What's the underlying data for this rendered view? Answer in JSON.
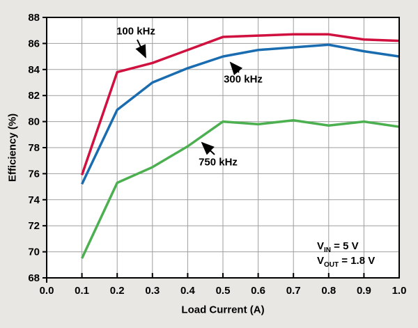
{
  "figure": {
    "background": "#e8e7e3",
    "plot_background": "#ffffff",
    "frame_color": "#000000",
    "grid_color": "#9e9e9e",
    "text_color": "#000000"
  },
  "chart_data": {
    "type": "line",
    "title": "",
    "xlabel": "Load Current (A)",
    "ylabel": "Efficiency (%)",
    "xlim": [
      0.0,
      1.0
    ],
    "ylim": [
      68,
      88
    ],
    "x_ticks": [
      0.0,
      0.1,
      0.2,
      0.3,
      0.4,
      0.5,
      0.6,
      0.7,
      0.8,
      0.9,
      1.0
    ],
    "y_ticks": [
      68,
      70,
      72,
      74,
      76,
      78,
      80,
      82,
      84,
      86,
      88
    ],
    "grid": true,
    "legend_position": "inline-labels-with-arrows",
    "x": [
      0.1,
      0.2,
      0.3,
      0.4,
      0.5,
      0.6,
      0.7,
      0.8,
      0.9,
      1.0
    ],
    "series": [
      {
        "name": "100 kHz",
        "color": "#d0103f",
        "values": [
          75.9,
          83.8,
          84.5,
          85.5,
          86.5,
          86.6,
          86.7,
          86.7,
          86.3,
          86.2
        ]
      },
      {
        "name": "300 kHz",
        "color": "#1a6cb0",
        "values": [
          75.2,
          80.9,
          83.0,
          84.1,
          85.0,
          85.5,
          85.7,
          85.9,
          85.4,
          85.0
        ]
      },
      {
        "name": "750 kHz",
        "color": "#4caf50",
        "values": [
          69.5,
          75.3,
          76.5,
          78.1,
          80.0,
          79.8,
          80.1,
          79.7,
          80.0,
          79.6
        ]
      }
    ]
  },
  "annotations": {
    "vin": {
      "symbol": "V",
      "sub": "IN",
      "rest": " = 5 V"
    },
    "vout": {
      "symbol": "V",
      "sub": "OUT",
      "rest": " = 1.8 V"
    }
  }
}
